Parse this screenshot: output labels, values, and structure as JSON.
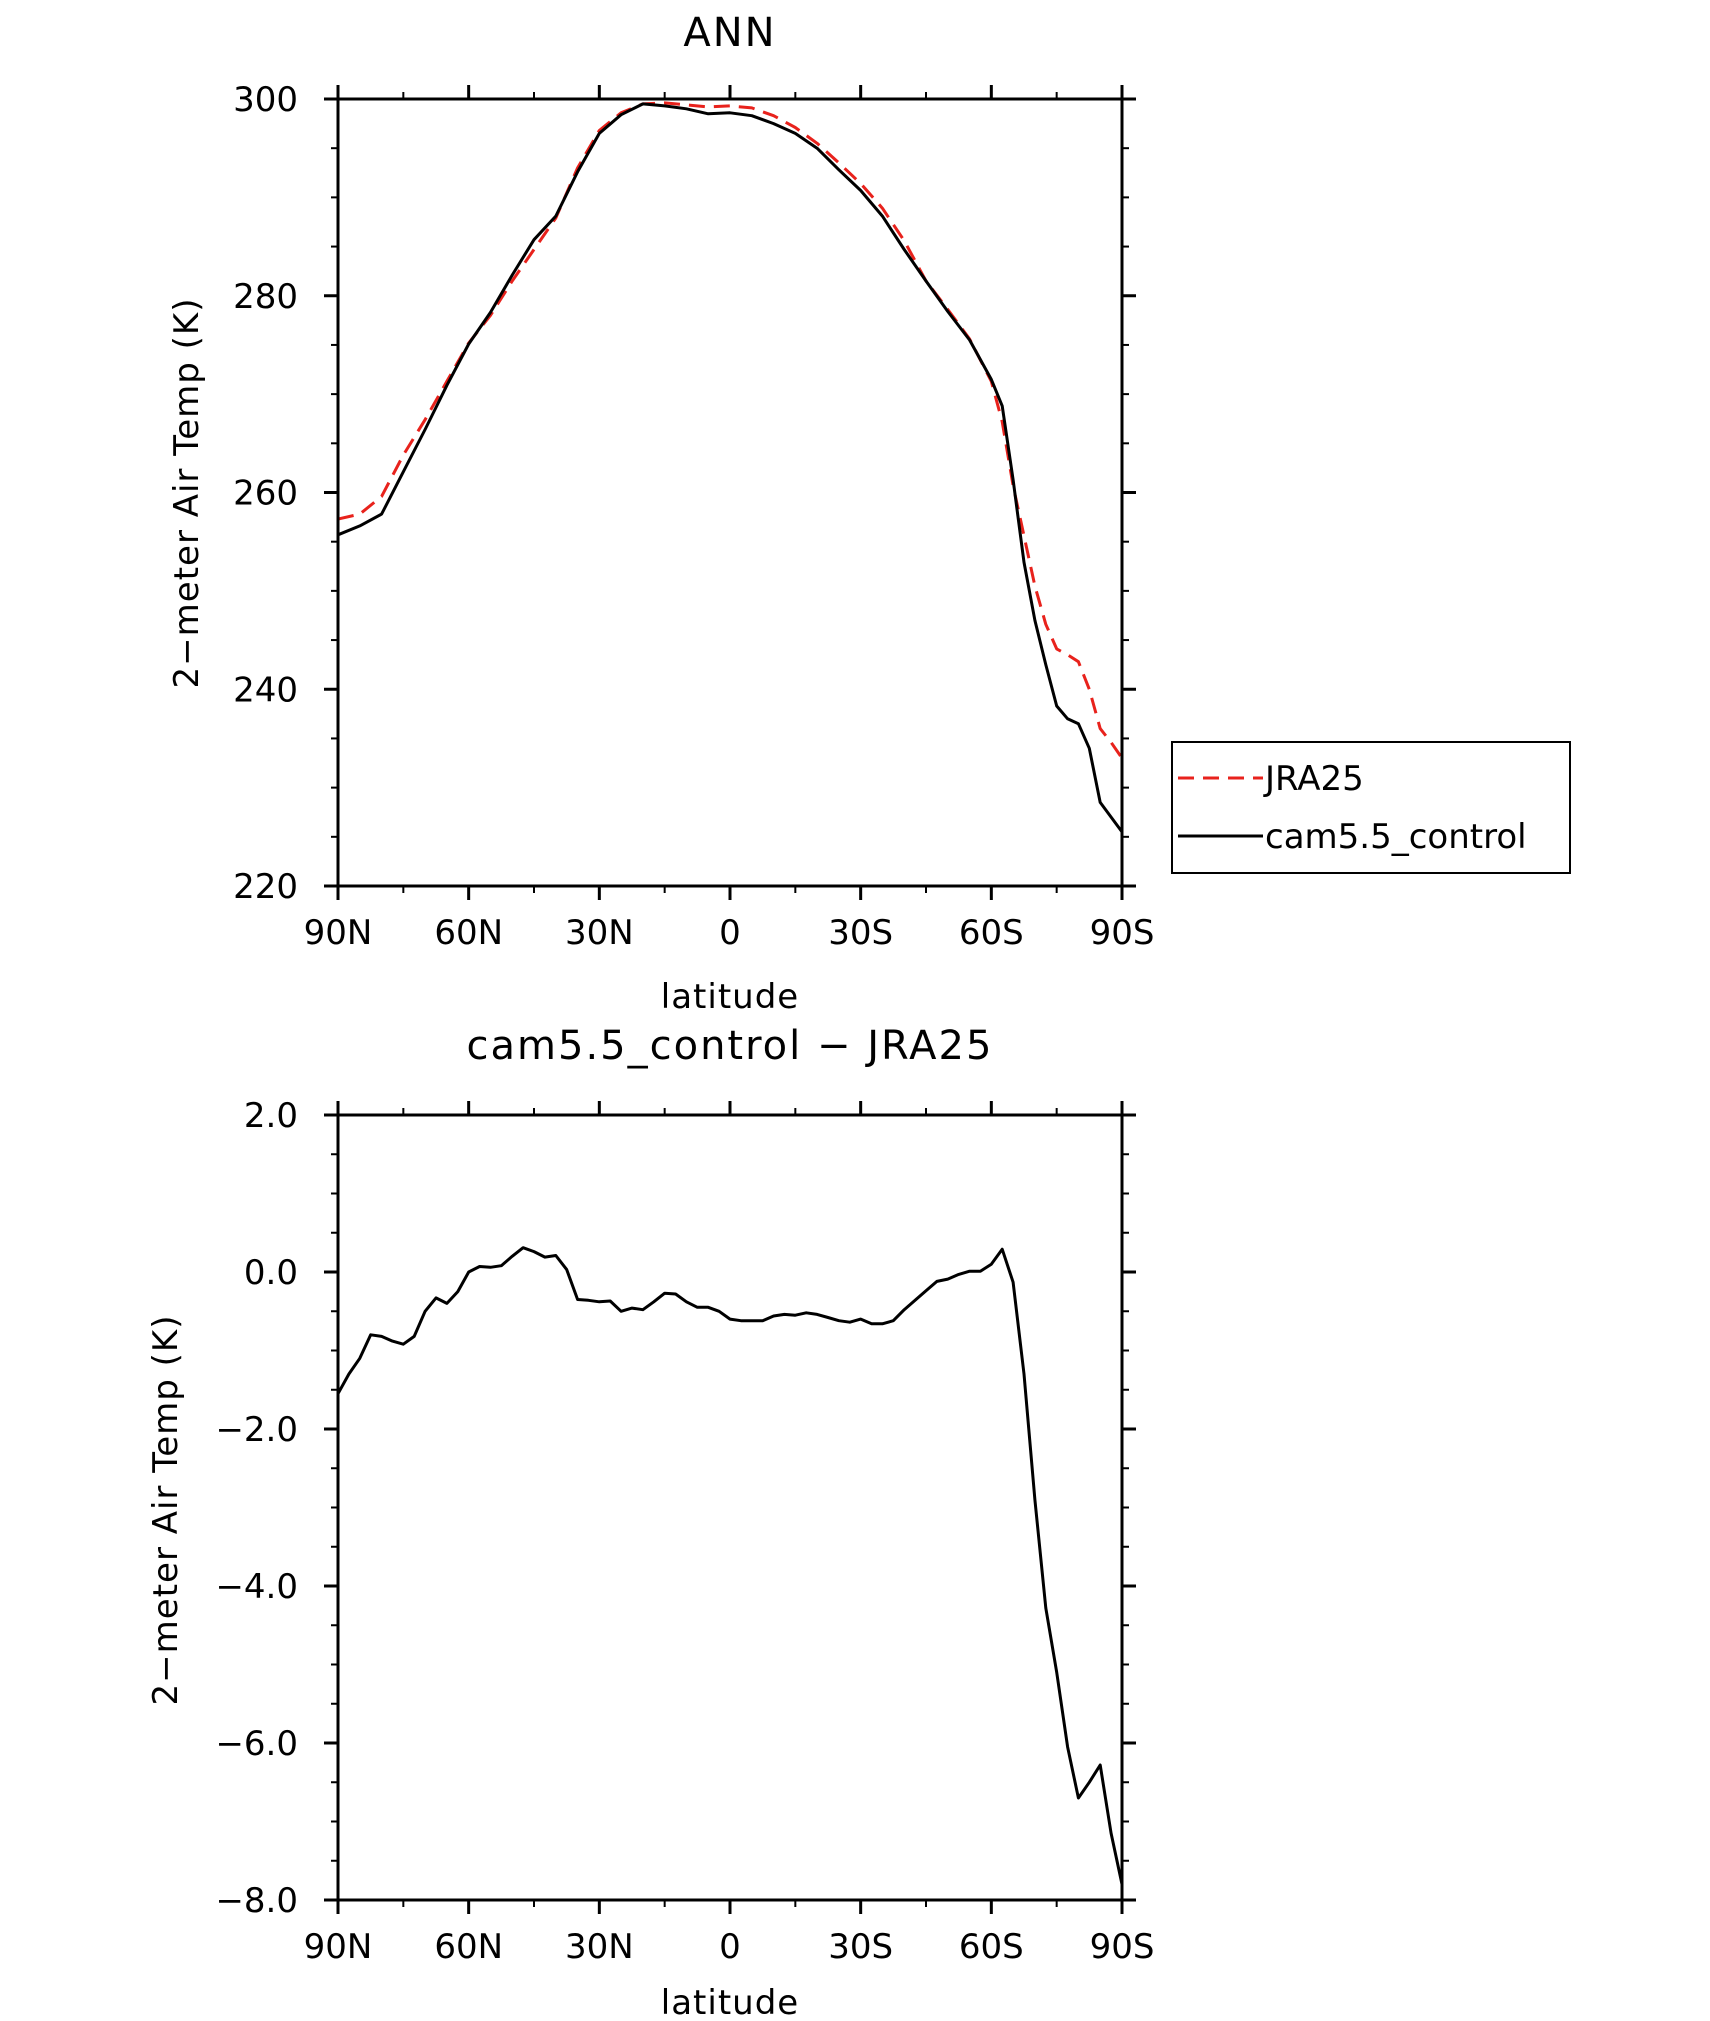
{
  "chart_data": [
    {
      "type": "line",
      "title": "ANN",
      "xlabel": "latitude",
      "ylabel": "2−meter Air Temp (K)",
      "xlim": [
        90,
        -90
      ],
      "ylim": [
        220,
        300
      ],
      "x_ticks": [
        90,
        60,
        30,
        0,
        -30,
        -60,
        -90
      ],
      "x_tick_labels": [
        "90N",
        "60N",
        "30N",
        "0",
        "30S",
        "60S",
        "90S"
      ],
      "y_ticks": [
        220,
        240,
        260,
        280,
        300
      ],
      "y_tick_labels": [
        "220",
        "240",
        "260",
        "280",
        "300"
      ],
      "grid": false,
      "legend": {
        "position": "right",
        "entries": [
          "JRA25",
          "cam5.5_control"
        ]
      },
      "series": [
        {
          "name": "JRA25",
          "color": "#e8221c",
          "dash": "dashed",
          "x": [
            90,
            85,
            80,
            75,
            70,
            65,
            60,
            55,
            50,
            45,
            40,
            35,
            30,
            25,
            20,
            15,
            10,
            5,
            0,
            -5,
            -10,
            -15,
            -20,
            -25,
            -30,
            -35,
            -40,
            -45,
            -50,
            -55,
            -60,
            -62.5,
            -65,
            -67.5,
            -70,
            -72.5,
            -75,
            -77.5,
            -80,
            -82.5,
            -85,
            -87.5,
            -90
          ],
          "y": [
            257.3,
            257.8,
            259.6,
            263.8,
            267.4,
            271.3,
            275.2,
            278.0,
            281.5,
            284.7,
            287.9,
            293.0,
            296.8,
            298.6,
            299.5,
            299.6,
            299.4,
            299.2,
            299.3,
            299.1,
            298.3,
            297.1,
            295.5,
            293.5,
            291.4,
            288.9,
            285.6,
            281.5,
            278.6,
            275.6,
            271.3,
            267.2,
            260.7,
            255.6,
            250.5,
            246.6,
            244.1,
            243.5,
            242.8,
            240.0,
            236.0,
            234.6,
            233.0
          ]
        },
        {
          "name": "cam5.5_control",
          "color": "#000000",
          "dash": "solid",
          "x": [
            90,
            85,
            80,
            75,
            70,
            65,
            60,
            55,
            50,
            45,
            40,
            35,
            30,
            25,
            20,
            15,
            10,
            5,
            0,
            -5,
            -10,
            -15,
            -20,
            -25,
            -30,
            -35,
            -40,
            -45,
            -50,
            -55,
            -60,
            -62.5,
            -65,
            -67.5,
            -70,
            -72.5,
            -75,
            -77.5,
            -80,
            -82.5,
            -85,
            -87.5,
            -90
          ],
          "y": [
            255.7,
            256.6,
            257.8,
            262.1,
            266.4,
            270.9,
            275.1,
            278.3,
            282.1,
            285.7,
            288.1,
            292.6,
            296.5,
            298.4,
            299.5,
            299.3,
            299.0,
            298.5,
            298.6,
            298.3,
            297.5,
            296.5,
            295.0,
            292.8,
            290.7,
            288.1,
            284.7,
            281.5,
            278.4,
            275.5,
            271.5,
            268.8,
            261.3,
            252.9,
            247.0,
            242.5,
            238.3,
            237.0,
            236.5,
            234.0,
            228.5,
            227.0,
            225.5
          ]
        }
      ]
    },
    {
      "type": "line",
      "title": "cam5.5_control − JRA25",
      "xlabel": "latitude",
      "ylabel": "2−meter Air Temp (K)",
      "xlim": [
        90,
        -90
      ],
      "ylim": [
        -8.0,
        2.0
      ],
      "x_ticks": [
        90,
        60,
        30,
        0,
        -30,
        -60,
        -90
      ],
      "x_tick_labels": [
        "90N",
        "60N",
        "30N",
        "0",
        "30S",
        "60S",
        "90S"
      ],
      "y_ticks": [
        -8,
        -6,
        -4,
        -2,
        0,
        2
      ],
      "y_tick_labels": [
        "−8.0",
        "−6.0",
        "−4.0",
        "−2.0",
        "0.0",
        "2.0"
      ],
      "grid": false,
      "series": [
        {
          "color": "#000000",
          "dash": "solid",
          "x": [
            90,
            87.5,
            85,
            82.5,
            80,
            77.5,
            75,
            72.5,
            70,
            67.5,
            65,
            62.5,
            60,
            57.5,
            55,
            52.5,
            50,
            47.5,
            45,
            42.5,
            40,
            37.5,
            35,
            32.5,
            30,
            27.5,
            25,
            22.5,
            20,
            17.5,
            15,
            12.5,
            10,
            7.5,
            5,
            2.5,
            0,
            -2.5,
            -5,
            -7.5,
            -10,
            -12.5,
            -15,
            -17.5,
            -20,
            -22.5,
            -25,
            -27.5,
            -30,
            -32.5,
            -35,
            -37.5,
            -40,
            -42.5,
            -45,
            -47.5,
            -50,
            -52.5,
            -55,
            -57.5,
            -60,
            -62.5,
            -65,
            -67.5,
            -70,
            -72.5,
            -75,
            -77.5,
            -80,
            -82.5,
            -85,
            -87.5,
            -90
          ],
          "y": [
            -1.55,
            -1.3,
            -1.1,
            -0.8,
            -0.82,
            -0.88,
            -0.92,
            -0.82,
            -0.5,
            -0.33,
            -0.4,
            -0.25,
            0.0,
            0.07,
            0.06,
            0.08,
            0.2,
            0.31,
            0.26,
            0.19,
            0.21,
            0.03,
            -0.35,
            -0.36,
            -0.38,
            -0.37,
            -0.5,
            -0.46,
            -0.48,
            -0.38,
            -0.27,
            -0.28,
            -0.38,
            -0.45,
            -0.45,
            -0.5,
            -0.6,
            -0.62,
            -0.62,
            -0.62,
            -0.56,
            -0.54,
            -0.55,
            -0.52,
            -0.54,
            -0.58,
            -0.62,
            -0.64,
            -0.6,
            -0.66,
            -0.66,
            -0.62,
            -0.48,
            -0.36,
            -0.24,
            -0.12,
            -0.09,
            -0.03,
            0.01,
            0.01,
            0.1,
            0.29,
            -0.13,
            -1.3,
            -2.9,
            -4.28,
            -5.1,
            -6.05,
            -6.7,
            -6.5,
            -6.28,
            -7.15,
            -7.8
          ]
        }
      ]
    }
  ]
}
